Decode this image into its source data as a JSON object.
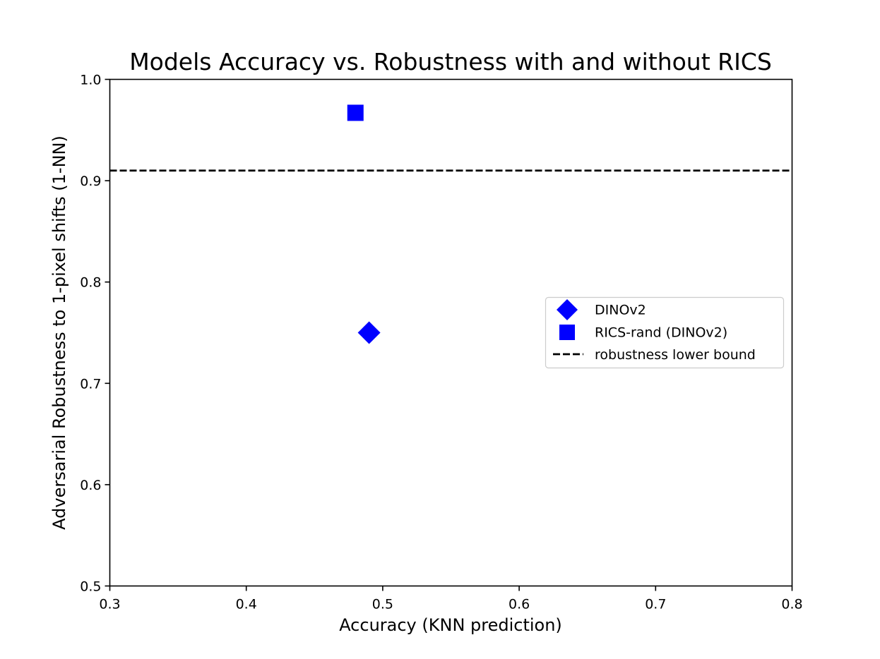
{
  "chart_data": {
    "type": "scatter",
    "title": "Models Accuracy vs. Robustness with and without RICS",
    "xlabel": "Accuracy (KNN prediction)",
    "ylabel": "Adversarial Robustness to 1-pixel shifts (1-NN)",
    "xlim": [
      0.3,
      0.8
    ],
    "ylim": [
      0.5,
      1.0
    ],
    "xticks": [
      "0.3",
      "0.4",
      "0.5",
      "0.6",
      "0.7",
      "0.8"
    ],
    "yticks": [
      "0.5",
      "0.6",
      "0.7",
      "0.8",
      "0.9",
      "1.0"
    ],
    "grid": false,
    "legend_position": "center-right",
    "series": [
      {
        "name": "DINOv2",
        "marker": "diamond",
        "color": "#0000ff",
        "points": [
          {
            "x": 0.49,
            "y": 0.75
          }
        ]
      },
      {
        "name": "RICS-rand (DINOv2)",
        "marker": "square",
        "color": "#0000ff",
        "points": [
          {
            "x": 0.48,
            "y": 0.967
          }
        ]
      }
    ],
    "reference_lines": [
      {
        "name": "robustness lower bound",
        "orientation": "horizontal",
        "y": 0.91,
        "style": "dashed",
        "color": "#000000"
      }
    ]
  }
}
